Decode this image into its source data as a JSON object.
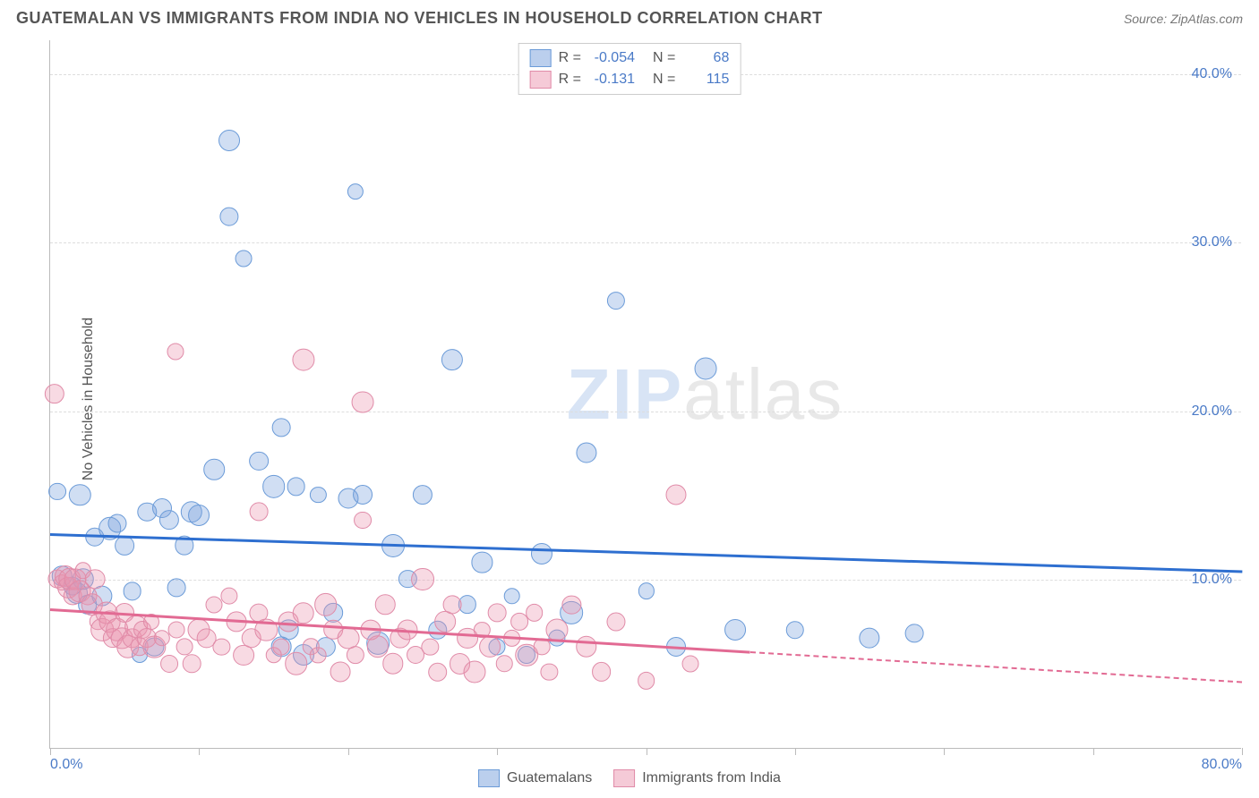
{
  "title": "GUATEMALAN VS IMMIGRANTS FROM INDIA NO VEHICLES IN HOUSEHOLD CORRELATION CHART",
  "source": "Source: ZipAtlas.com",
  "ylabel": "No Vehicles in Household",
  "watermark_bold": "ZIP",
  "watermark_light": "atlas",
  "chart": {
    "type": "scatter",
    "xlim": [
      0,
      80
    ],
    "ylim": [
      0,
      42
    ],
    "xtick_positions": [
      0,
      10,
      20,
      30,
      40,
      50,
      60,
      70,
      80
    ],
    "xtick_labels": {
      "0": "0.0%",
      "80": "80.0%"
    },
    "ytick_positions": [
      10,
      20,
      30,
      40
    ],
    "ytick_labels": [
      "10.0%",
      "20.0%",
      "30.0%",
      "40.0%"
    ],
    "grid_color": "#dddddd",
    "axis_color": "#bbbbbb",
    "background_color": "#ffffff",
    "label_color": "#555555",
    "tick_label_color": "#4a7ac7",
    "series": [
      {
        "name": "Guatemalans",
        "color_fill": "rgba(120,160,220,0.35)",
        "color_stroke": "#6b9bd8",
        "trend_color": "#2e6fd0",
        "trend_style": "solid",
        "r": -0.054,
        "n": 68,
        "trend": {
          "x1": 0,
          "y1": 12.8,
          "x2": 80,
          "y2": 10.6
        },
        "points": [
          [
            0.5,
            15.2
          ],
          [
            0.8,
            10.2
          ],
          [
            1.5,
            9.6
          ],
          [
            1.8,
            9.2
          ],
          [
            2.0,
            15.0
          ],
          [
            2.2,
            10.0
          ],
          [
            2.5,
            8.5
          ],
          [
            3.0,
            12.5
          ],
          [
            3.5,
            9.0
          ],
          [
            4.0,
            13.0
          ],
          [
            4.5,
            13.3
          ],
          [
            5.0,
            12.0
          ],
          [
            5.5,
            9.3
          ],
          [
            6.0,
            5.5
          ],
          [
            6.5,
            14.0
          ],
          [
            7.0,
            6.0
          ],
          [
            7.5,
            14.2
          ],
          [
            8.0,
            13.5
          ],
          [
            8.5,
            9.5
          ],
          [
            9.0,
            12.0
          ],
          [
            9.5,
            14.0
          ],
          [
            10.0,
            13.8
          ],
          [
            11.0,
            16.5
          ],
          [
            12.0,
            36.0
          ],
          [
            12.0,
            31.5
          ],
          [
            13.0,
            29.0
          ],
          [
            14.0,
            17.0
          ],
          [
            15.0,
            15.5
          ],
          [
            15.5,
            19.0
          ],
          [
            15.5,
            6.0
          ],
          [
            16.0,
            7.0
          ],
          [
            16.5,
            15.5
          ],
          [
            17.0,
            5.5
          ],
          [
            18.0,
            15.0
          ],
          [
            18.5,
            6.0
          ],
          [
            19.0,
            8.0
          ],
          [
            20.0,
            14.8
          ],
          [
            20.5,
            33.0
          ],
          [
            21.0,
            15.0
          ],
          [
            22.0,
            6.2
          ],
          [
            23.0,
            12.0
          ],
          [
            24.0,
            10.0
          ],
          [
            25.0,
            15.0
          ],
          [
            26.0,
            7.0
          ],
          [
            27.0,
            23.0
          ],
          [
            28.0,
            8.5
          ],
          [
            29.0,
            11.0
          ],
          [
            30.0,
            6.0
          ],
          [
            31.0,
            9.0
          ],
          [
            32.0,
            5.5
          ],
          [
            33.0,
            11.5
          ],
          [
            34.0,
            6.5
          ],
          [
            35.0,
            8.0
          ],
          [
            36.0,
            17.5
          ],
          [
            38.0,
            26.5
          ],
          [
            40.0,
            9.3
          ],
          [
            42.0,
            6.0
          ],
          [
            44.0,
            22.5
          ],
          [
            46.0,
            7.0
          ],
          [
            50.0,
            7.0
          ],
          [
            55.0,
            6.5
          ],
          [
            58.0,
            6.8
          ]
        ]
      },
      {
        "name": "Immigrants from India",
        "color_fill": "rgba(235,150,175,0.35)",
        "color_stroke": "#e08ba8",
        "trend_color": "#e26a93",
        "trend_style": "dashed_end",
        "r": -0.131,
        "n": 115,
        "trend": {
          "x1": 0,
          "y1": 8.3,
          "x2": 80,
          "y2": 4.0
        },
        "trend_solid_end_x": 47,
        "points": [
          [
            0.3,
            21.0
          ],
          [
            0.5,
            10.0
          ],
          [
            0.8,
            9.8
          ],
          [
            1.0,
            10.2
          ],
          [
            1.2,
            9.5
          ],
          [
            1.3,
            10.0
          ],
          [
            1.5,
            9.0
          ],
          [
            1.7,
            10.0
          ],
          [
            2.0,
            9.3
          ],
          [
            2.2,
            10.5
          ],
          [
            2.5,
            9.0
          ],
          [
            2.8,
            8.5
          ],
          [
            3.0,
            10.0
          ],
          [
            3.2,
            7.5
          ],
          [
            3.5,
            7.0
          ],
          [
            3.8,
            8.0
          ],
          [
            4.0,
            7.5
          ],
          [
            4.2,
            6.5
          ],
          [
            4.5,
            7.0
          ],
          [
            4.8,
            6.5
          ],
          [
            5.0,
            8.0
          ],
          [
            5.2,
            6.0
          ],
          [
            5.5,
            6.5
          ],
          [
            5.8,
            7.2
          ],
          [
            6.0,
            6.0
          ],
          [
            6.2,
            7.0
          ],
          [
            6.5,
            6.5
          ],
          [
            6.8,
            7.5
          ],
          [
            7.0,
            6.0
          ],
          [
            7.5,
            6.5
          ],
          [
            8.0,
            5.0
          ],
          [
            8.5,
            7.0
          ],
          [
            8.4,
            23.5
          ],
          [
            9.0,
            6.0
          ],
          [
            9.5,
            5.0
          ],
          [
            10.0,
            7.0
          ],
          [
            10.5,
            6.5
          ],
          [
            11.0,
            8.5
          ],
          [
            11.5,
            6.0
          ],
          [
            12.0,
            9.0
          ],
          [
            12.5,
            7.5
          ],
          [
            13.0,
            5.5
          ],
          [
            13.5,
            6.5
          ],
          [
            14.0,
            8.0
          ],
          [
            14.0,
            14.0
          ],
          [
            14.5,
            7.0
          ],
          [
            15.0,
            5.5
          ],
          [
            15.5,
            6.0
          ],
          [
            16.0,
            7.5
          ],
          [
            16.5,
            5.0
          ],
          [
            17.0,
            8.0
          ],
          [
            17.0,
            23.0
          ],
          [
            17.5,
            6.0
          ],
          [
            18.0,
            5.5
          ],
          [
            18.5,
            8.5
          ],
          [
            19.0,
            7.0
          ],
          [
            19.5,
            4.5
          ],
          [
            20.0,
            6.5
          ],
          [
            20.5,
            5.5
          ],
          [
            21.0,
            13.5
          ],
          [
            21.0,
            20.5
          ],
          [
            21.5,
            7.0
          ],
          [
            22.0,
            6.0
          ],
          [
            22.5,
            8.5
          ],
          [
            23.0,
            5.0
          ],
          [
            23.5,
            6.5
          ],
          [
            24.0,
            7.0
          ],
          [
            24.5,
            5.5
          ],
          [
            25.0,
            10.0
          ],
          [
            25.5,
            6.0
          ],
          [
            26.0,
            4.5
          ],
          [
            26.5,
            7.5
          ],
          [
            27.0,
            8.5
          ],
          [
            27.5,
            5.0
          ],
          [
            28.0,
            6.5
          ],
          [
            28.5,
            4.5
          ],
          [
            29.0,
            7.0
          ],
          [
            29.5,
            6.0
          ],
          [
            30.0,
            8.0
          ],
          [
            30.5,
            5.0
          ],
          [
            31.0,
            6.5
          ],
          [
            31.5,
            7.5
          ],
          [
            32.0,
            5.5
          ],
          [
            32.5,
            8.0
          ],
          [
            33.0,
            6.0
          ],
          [
            33.5,
            4.5
          ],
          [
            34.0,
            7.0
          ],
          [
            35.0,
            8.5
          ],
          [
            36.0,
            6.0
          ],
          [
            37.0,
            4.5
          ],
          [
            38.0,
            7.5
          ],
          [
            40.0,
            4.0
          ],
          [
            42.0,
            15.0
          ],
          [
            43.0,
            5.0
          ]
        ]
      }
    ]
  },
  "legend_top": [
    {
      "swatch_fill": "rgba(120,160,220,0.5)",
      "swatch_border": "#6b9bd8",
      "r_label": "R =",
      "r_val": "-0.054",
      "n_label": "N =",
      "n_val": "68"
    },
    {
      "swatch_fill": "rgba(235,150,175,0.5)",
      "swatch_border": "#e08ba8",
      "r_label": "R =",
      "r_val": "-0.131",
      "n_label": "N =",
      "n_val": "115"
    }
  ],
  "legend_bottom": [
    {
      "swatch_fill": "rgba(120,160,220,0.5)",
      "swatch_border": "#6b9bd8",
      "label": "Guatemalans"
    },
    {
      "swatch_fill": "rgba(235,150,175,0.5)",
      "swatch_border": "#e08ba8",
      "label": "Immigrants from India"
    }
  ]
}
